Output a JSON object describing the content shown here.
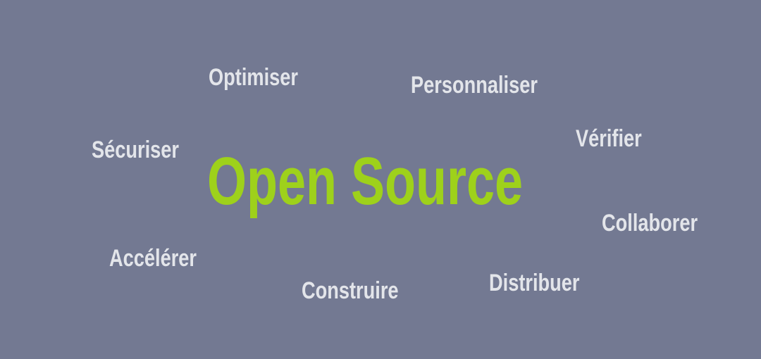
{
  "headline": "Open Source",
  "words": {
    "optimiser": "Optimiser",
    "personnaliser": "Personnaliser",
    "securiser": "Sécuriser",
    "verifier": "Vérifier",
    "collaborer": "Collaborer",
    "accelerer": "Accélérer",
    "construire": "Construire",
    "distribuer": "Distribuer"
  },
  "colors": {
    "background": "#737992",
    "headline": "#9ed11b",
    "words": "#e3e5ea"
  }
}
